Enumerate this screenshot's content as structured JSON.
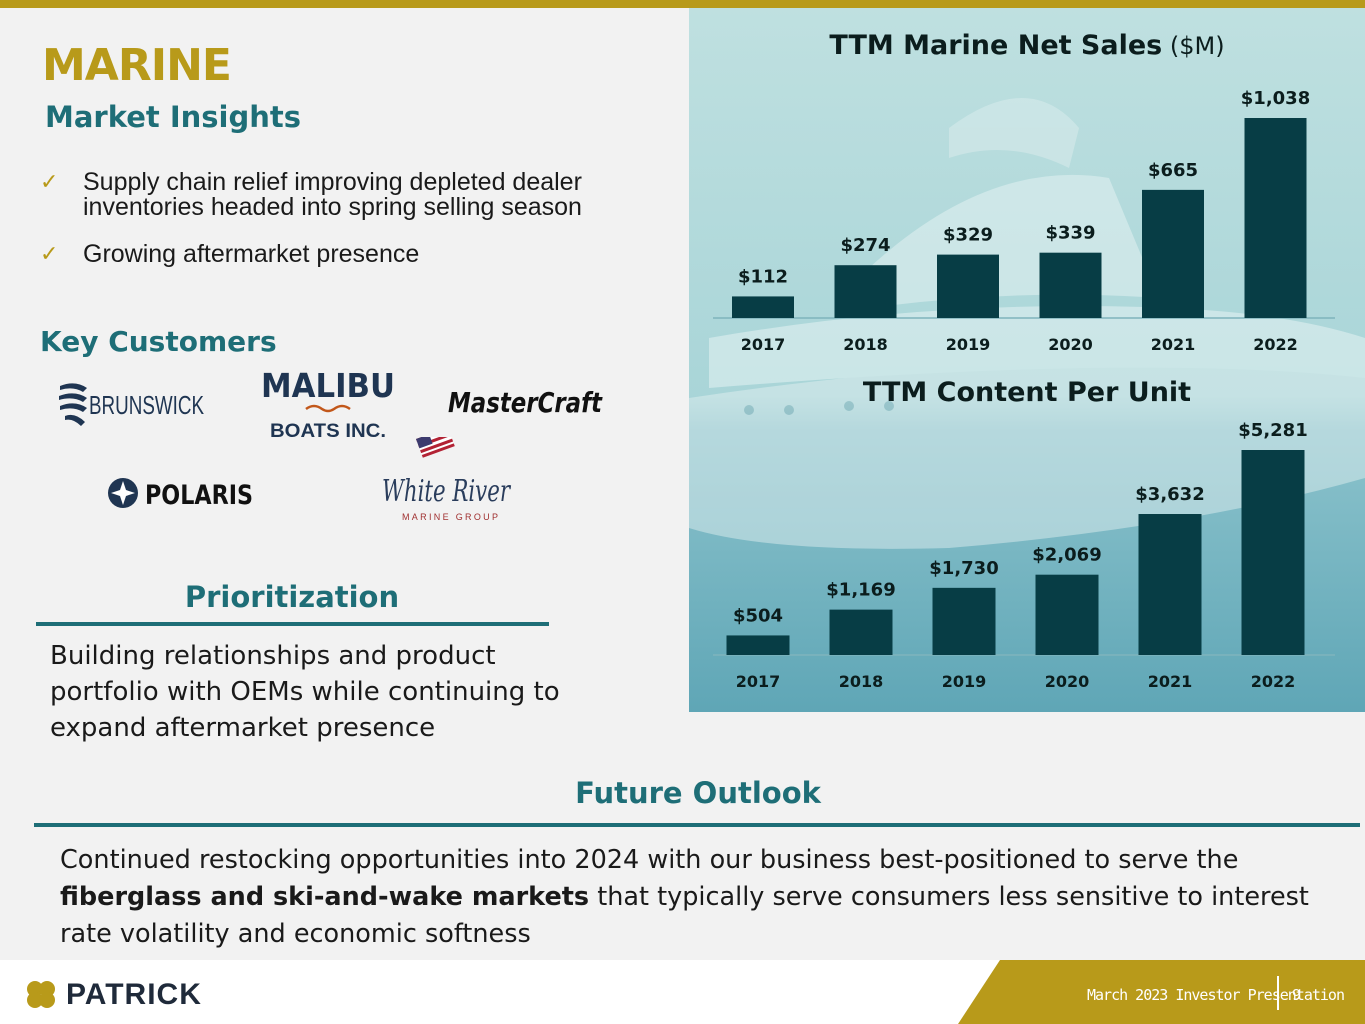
{
  "colors": {
    "gold": "#b89a1a",
    "teal": "#1e6e77",
    "dark_teal": "#073d45",
    "text": "#1a1a1a",
    "footer_gold": "#b89a1a"
  },
  "slide": {
    "title": "MARINE",
    "subtitle": "Market Insights",
    "insights": [
      "Supply chain relief improving depleted dealer inventories headed into spring selling season",
      "Growing aftermarket presence"
    ],
    "check_icon": "✓"
  },
  "customers": {
    "title": "Key Customers",
    "logos": {
      "brunswick": "BRUNSWICK",
      "malibu_top": "MALIBU",
      "malibu_bottom": "BOATS INC.",
      "mastercraft": "MasterCraft",
      "polaris": "POLARIS",
      "whiteriver_script": "White River",
      "whiteriver_sub": "MARINE GROUP"
    }
  },
  "prioritization": {
    "heading": "Prioritization",
    "text": "Building relationships and product portfolio with OEMs while continuing to expand aftermarket presence"
  },
  "outlook": {
    "heading": "Future Outlook",
    "text_before": "Continued restocking opportunities into 2024 with our business best-positioned to serve the ",
    "text_bold": "fiberglass and ski-and-wake markets",
    "text_after": " that typically serve consumers less sensitive to interest rate volatility and economic softness"
  },
  "footer": {
    "brand": "PATRICK",
    "label": "March 2023 Investor Presentation",
    "page": "9"
  },
  "chart_data": [
    {
      "type": "bar",
      "title": "TTM Marine Net Sales",
      "title_unit": "($M)",
      "categories": [
        "2017",
        "2018",
        "2019",
        "2020",
        "2021",
        "2022"
      ],
      "values": [
        112,
        274,
        329,
        339,
        665,
        1038
      ],
      "labels": [
        "$112",
        "$274",
        "$329",
        "$339",
        "$665",
        "$1,038"
      ],
      "ylim": [
        0,
        1038
      ],
      "grid": false,
      "color": "#073d45"
    },
    {
      "type": "bar",
      "title": "TTM Content Per Unit",
      "title_unit": "",
      "categories": [
        "2017",
        "2018",
        "2019",
        "2020",
        "2021",
        "2022"
      ],
      "values": [
        504,
        1169,
        1730,
        2069,
        3632,
        5281
      ],
      "labels": [
        "$504",
        "$1,169",
        "$1,730",
        "$2,069",
        "$3,632",
        "$5,281"
      ],
      "ylim": [
        0,
        5281
      ],
      "grid": false,
      "color": "#073d45"
    }
  ]
}
